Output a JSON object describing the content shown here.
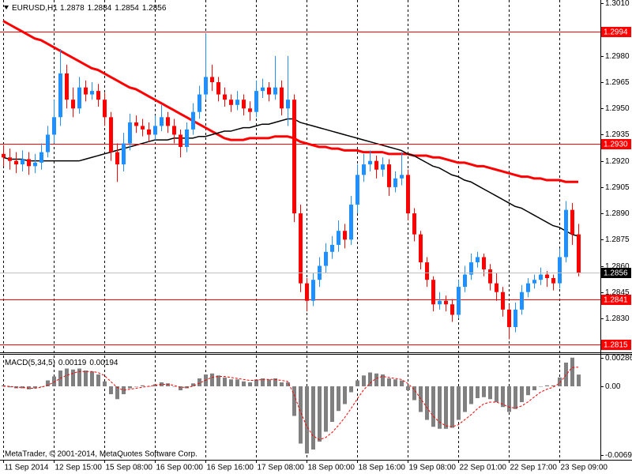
{
  "chart_data": {
    "type": "candlestick",
    "symbol": "EURUSD,H1",
    "copyright": "MetaTrader, © 2001-2014, MetaQuotes Software Corp.",
    "up_color": "#1e90ff",
    "down_color": "#ff0000",
    "grid": true,
    "categories": [
      "11 Sep 2014",
      null,
      null,
      null,
      null,
      null,
      null,
      null,
      "12 Sep 15:00",
      null,
      null,
      null,
      null,
      null,
      null,
      null,
      "15 Sep 08:00",
      null,
      null,
      null,
      null,
      null,
      null,
      null,
      "16 Sep 00:00",
      null,
      null,
      null,
      null,
      null,
      null,
      null,
      "16 Sep 16:00",
      null,
      null,
      null,
      null,
      null,
      null,
      null,
      "17 Sep 08:00",
      null,
      null,
      null,
      null,
      null,
      null,
      null,
      "18 Sep 00:00",
      null,
      null,
      null,
      null,
      null,
      null,
      null,
      "18 Sep 16:00",
      null,
      null,
      null,
      null,
      null,
      null,
      null,
      "19 Sep 08:00",
      null,
      null,
      null,
      null,
      null,
      null,
      null,
      "22 Sep 01:00",
      null,
      null,
      null,
      null,
      null,
      null,
      null,
      "22 Sep 17:00",
      null,
      null,
      null,
      null,
      null,
      null,
      null,
      "23 Sep 09:00",
      null,
      null,
      null
    ],
    "open": [
      1.2924,
      1.2922,
      1.292,
      1.2918,
      1.2921,
      1.2917,
      1.2919,
      1.2925,
      1.2935,
      1.2945,
      1.297,
      1.2955,
      1.295,
      1.2962,
      1.2958,
      1.296,
      1.2955,
      1.2945,
      1.2925,
      1.2918,
      1.293,
      1.2942,
      1.294,
      1.2938,
      1.2935,
      1.294,
      1.2945,
      1.294,
      1.2935,
      1.2928,
      1.2938,
      1.2948,
      1.2958,
      1.2968,
      1.2965,
      1.2958,
      1.2955,
      1.2952,
      1.2955,
      1.295,
      1.2948,
      1.296,
      1.2962,
      1.2958,
      1.2962,
      1.295,
      1.2955,
      1.289,
      1.285,
      1.284,
      1.2852,
      1.286,
      1.2868,
      1.2872,
      1.288,
      1.2875,
      1.2895,
      1.2912,
      1.2918,
      1.292,
      1.2915,
      1.2918,
      1.2905,
      1.291,
      1.2912,
      1.289,
      1.2878,
      1.2862,
      1.2852,
      1.2838,
      1.284,
      1.2838,
      1.2832,
      1.2848,
      1.2855,
      1.2862,
      1.2865,
      1.2858,
      1.285,
      1.2845,
      1.2835,
      1.2825,
      1.2835,
      1.2845,
      1.285,
      1.2852,
      1.2855,
      1.2853,
      1.285,
      1.2865,
      1.2892,
      1.2878
    ],
    "high": [
      1.2929,
      1.2927,
      1.2925,
      1.2926,
      1.2925,
      1.2924,
      1.293,
      1.294,
      1.2955,
      1.2984,
      1.2975,
      1.2962,
      1.2968,
      1.2966,
      1.2965,
      1.2964,
      1.2959,
      1.2948,
      1.293,
      1.2936,
      1.2947,
      1.2946,
      1.2944,
      1.2942,
      1.2946,
      1.2952,
      1.2948,
      1.2944,
      1.2938,
      1.2942,
      1.2953,
      1.2963,
      1.2993,
      1.2975,
      1.2968,
      1.2962,
      1.2958,
      1.296,
      1.2958,
      1.2954,
      1.2966,
      1.2967,
      1.2965,
      1.298,
      1.2966,
      1.298,
      1.2958,
      1.2895,
      1.2853,
      1.2856,
      1.2865,
      1.2873,
      1.2877,
      1.2886,
      1.2884,
      1.29,
      1.2918,
      1.2924,
      1.2926,
      1.2923,
      1.2922,
      1.2921,
      1.2914,
      1.2925,
      1.2915,
      1.2893,
      1.288,
      1.2865,
      1.2854,
      1.2845,
      1.2843,
      1.2841,
      1.2852,
      1.286,
      1.2867,
      1.2868,
      1.2867,
      1.2861,
      1.2856,
      1.2848,
      1.2838,
      1.2839,
      1.2849,
      1.2853,
      1.2855,
      1.2859,
      1.2857,
      1.2855,
      1.287,
      1.2897,
      1.2896,
      1.2884
    ],
    "low": [
      1.2917,
      1.2915,
      1.2913,
      1.2914,
      1.2912,
      1.2913,
      1.2915,
      1.2922,
      1.293,
      1.294,
      1.295,
      1.2945,
      1.2947,
      1.2954,
      1.2955,
      1.2951,
      1.294,
      1.292,
      1.2908,
      1.2914,
      1.2926,
      1.2936,
      1.2934,
      1.2931,
      1.2932,
      1.2937,
      1.2936,
      1.293,
      1.2922,
      1.2925,
      1.2935,
      1.2944,
      1.2955,
      1.296,
      1.2954,
      1.2951,
      1.2948,
      1.2949,
      1.2946,
      1.2943,
      1.2945,
      1.2956,
      1.2954,
      1.2955,
      1.2946,
      1.294,
      1.2885,
      1.2845,
      1.2834,
      1.2837,
      1.2848,
      1.2856,
      1.2864,
      1.2868,
      1.287,
      1.2872,
      1.289,
      1.2908,
      1.2914,
      1.291,
      1.2911,
      1.29,
      1.2902,
      1.2906,
      1.2886,
      1.2874,
      1.2858,
      1.2848,
      1.2834,
      1.2835,
      1.2834,
      1.2828,
      1.283,
      1.2845,
      1.2852,
      1.2859,
      1.2854,
      1.2846,
      1.284,
      1.2831,
      1.2818,
      1.2822,
      1.2832,
      1.2842,
      1.2847,
      1.2849,
      1.2848,
      1.2846,
      1.2847,
      1.2862,
      1.2872,
      1.2854
    ],
    "close": [
      1.2922,
      1.292,
      1.2918,
      1.2921,
      1.2917,
      1.2919,
      1.2925,
      1.2935,
      1.2945,
      1.297,
      1.2955,
      1.295,
      1.2962,
      1.2958,
      1.296,
      1.2955,
      1.2945,
      1.2925,
      1.2918,
      1.293,
      1.2942,
      1.294,
      1.2938,
      1.2935,
      1.294,
      1.2945,
      1.294,
      1.2935,
      1.2928,
      1.2938,
      1.2948,
      1.2958,
      1.2968,
      1.2965,
      1.2958,
      1.2955,
      1.2952,
      1.2955,
      1.295,
      1.2948,
      1.296,
      1.2962,
      1.2958,
      1.2962,
      1.295,
      1.2955,
      1.289,
      1.285,
      1.284,
      1.2852,
      1.286,
      1.2868,
      1.2872,
      1.288,
      1.2875,
      1.2895,
      1.2912,
      1.2918,
      1.292,
      1.2915,
      1.2918,
      1.2905,
      1.291,
      1.2912,
      1.289,
      1.2878,
      1.2862,
      1.2852,
      1.2838,
      1.284,
      1.2838,
      1.2832,
      1.2848,
      1.2855,
      1.2862,
      1.2865,
      1.2858,
      1.285,
      1.2845,
      1.2835,
      1.2825,
      1.2835,
      1.2845,
      1.285,
      1.2852,
      1.2855,
      1.2853,
      1.285,
      1.2865,
      1.2892,
      1.2878,
      1.2856
    ],
    "ma": [
      {
        "color": "#ff0000",
        "values": [
          1.3,
          1.2998,
          1.2996,
          1.2994,
          1.2992,
          1.299,
          1.2989,
          1.2987,
          1.2985,
          1.2983,
          1.2981,
          1.2979,
          1.2977,
          1.2975,
          1.2973,
          1.2972,
          1.297,
          1.2968,
          1.2966,
          1.2964,
          1.2962,
          1.2961,
          1.2959,
          1.2957,
          1.2955,
          1.2953,
          1.2951,
          1.2949,
          1.2947,
          1.2945,
          1.2943,
          1.2941,
          1.2939,
          1.2937,
          1.2935,
          1.2933,
          1.2932,
          1.2932,
          1.2932,
          1.2933,
          1.2933,
          1.2933,
          1.2933,
          1.2934,
          1.2934,
          1.2934,
          1.2933,
          1.2931,
          1.293,
          1.2929,
          1.2928,
          1.2928,
          1.2927,
          1.2927,
          1.2926,
          1.2926,
          1.2926,
          1.2925,
          1.2925,
          1.2925,
          1.2925,
          1.2924,
          1.2924,
          1.2924,
          1.2924,
          1.2923,
          1.2923,
          1.2923,
          1.2922,
          1.2922,
          1.2921,
          1.292,
          1.2919,
          1.2919,
          1.2918,
          1.2917,
          1.2917,
          1.2916,
          1.2915,
          1.2914,
          1.2913,
          1.2912,
          1.2911,
          1.2911,
          1.291,
          1.291,
          1.2909,
          1.2909,
          1.2909,
          1.2908,
          1.2908,
          1.2908
        ]
      },
      {
        "color": "#000000",
        "values": [
          1.2922,
          1.2921,
          1.2921,
          1.2921,
          1.292,
          1.292,
          1.292,
          1.292,
          1.292,
          1.292,
          1.292,
          1.292,
          1.292,
          1.2921,
          1.2922,
          1.2923,
          1.2924,
          1.2925,
          1.2926,
          1.2927,
          1.2928,
          1.2929,
          1.293,
          1.2931,
          1.2932,
          1.2932,
          1.2932,
          1.2933,
          1.2933,
          1.2933,
          1.2933,
          1.2934,
          1.2934,
          1.2935,
          1.2936,
          1.2937,
          1.2937,
          1.2938,
          1.2939,
          1.2939,
          1.294,
          1.2941,
          1.2941,
          1.2942,
          1.2943,
          1.2944,
          1.2944,
          1.2942,
          1.2941,
          1.294,
          1.2939,
          1.2938,
          1.2937,
          1.2936,
          1.2935,
          1.2934,
          1.2933,
          1.2932,
          1.2931,
          1.293,
          1.2929,
          1.2928,
          1.2927,
          1.2926,
          1.2924,
          1.2923,
          1.2921,
          1.2919,
          1.2917,
          1.2916,
          1.2914,
          1.2912,
          1.2911,
          1.2909,
          1.2908,
          1.2906,
          1.2904,
          1.2902,
          1.29,
          1.2898,
          1.2896,
          1.2894,
          1.2893,
          1.2891,
          1.2889,
          1.2887,
          1.2885,
          1.2883,
          1.2882,
          1.288,
          1.2878,
          1.2877
        ]
      }
    ],
    "levels": [
      1.2994,
      {
        "value": 1.293,
        "label": "1.2930"
      },
      1.2841,
      1.2815
    ],
    "level_color": "#ff0000",
    "ylim": [
      1.2811,
      1.3012
    ],
    "yticks": [
      {
        "value": 1.301,
        "label": "1.3010"
      },
      {
        "value": 1.298,
        "label": "1.2980"
      },
      1.2965,
      {
        "value": 1.295,
        "label": "1.2950"
      },
      1.2935,
      {
        "value": 1.292,
        "label": "1.2920"
      },
      1.2905,
      {
        "value": 1.289,
        "label": "1.2890"
      },
      1.2875,
      {
        "value": 1.286,
        "label": "1.2860"
      },
      1.2845,
      {
        "value": 1.283,
        "label": "1.2830"
      }
    ],
    "macd": {
      "label": "MACD(5,34,5)",
      "hist_color": "#808080",
      "signal_color": "#ff0000",
      "ylim": [
        -0.00744,
        0.0032
      ],
      "yticks": [
        0.00286,
        {
          "value": 0,
          "label": "0.00"
        },
        -0.00696
      ],
      "hist": [
        0.0001,
        -0.0001,
        -0.0002,
        -0.0002,
        -0.0003,
        -0.0002,
        0.0,
        0.0006,
        0.001,
        0.0016,
        0.0018,
        0.0017,
        0.0018,
        0.0016,
        0.0015,
        0.0012,
        0.0005,
        -0.0008,
        -0.0013,
        -0.0008,
        -0.0002,
        0.0,
        0.0001,
        0.0,
        0.0002,
        0.0004,
        0.0003,
        0.0,
        -0.0004,
        -0.0002,
        0.0003,
        0.0008,
        0.0012,
        0.0013,
        0.0011,
        0.0009,
        0.0007,
        0.0007,
        0.0005,
        0.0004,
        0.0007,
        0.0008,
        0.0007,
        0.0008,
        0.0004,
        0.0004,
        -0.003,
        -0.0058,
        -0.0068,
        -0.0064,
        -0.0056,
        -0.0046,
        -0.0036,
        -0.0025,
        -0.0018,
        -0.0006,
        0.0006,
        0.0011,
        0.0014,
        0.0013,
        0.0012,
        0.0008,
        0.0007,
        0.0006,
        -0.0004,
        -0.0014,
        -0.0026,
        -0.0034,
        -0.0041,
        -0.0043,
        -0.0043,
        -0.0042,
        -0.0034,
        -0.0026,
        -0.0018,
        -0.0012,
        -0.0011,
        -0.0013,
        -0.0016,
        -0.0021,
        -0.0026,
        -0.0023,
        -0.0016,
        -0.0009,
        -0.0004,
        0.0,
        0.0001,
        0.0001,
        0.0009,
        0.0024,
        0.0029,
        0.00119
      ],
      "signal": [
        0.0,
        0.0,
        -0.0001,
        -0.0001,
        -0.0002,
        -0.0002,
        -0.0001,
        0.0001,
        0.0004,
        0.0008,
        0.0011,
        0.0013,
        0.0015,
        0.0015,
        0.0015,
        0.0014,
        0.0011,
        0.0005,
        -0.0001,
        -0.0004,
        -0.0003,
        -0.0002,
        -0.0001,
        0.0,
        0.0001,
        0.0002,
        0.0002,
        0.0001,
        -0.0001,
        -0.0001,
        0.0,
        0.0003,
        0.0006,
        0.0009,
        0.001,
        0.001,
        0.0009,
        0.0008,
        0.0007,
        0.0006,
        0.0006,
        0.0007,
        0.0007,
        0.0007,
        0.0006,
        0.0005,
        -0.0008,
        -0.0025,
        -0.004,
        -0.005,
        -0.0054,
        -0.0052,
        -0.0047,
        -0.004,
        -0.0032,
        -0.0023,
        -0.0013,
        -0.0004,
        0.0003,
        0.0008,
        0.001,
        0.0009,
        0.0008,
        0.0007,
        0.0003,
        -0.0003,
        -0.0012,
        -0.0021,
        -0.003,
        -0.0036,
        -0.004,
        -0.0041,
        -0.0039,
        -0.0034,
        -0.0029,
        -0.0023,
        -0.0018,
        -0.0016,
        -0.0016,
        -0.0018,
        -0.0021,
        -0.0022,
        -0.002,
        -0.0016,
        -0.0011,
        -0.0006,
        -0.0003,
        -0.0001,
        0.0003,
        0.0011,
        0.0019,
        0.00194
      ]
    }
  }
}
